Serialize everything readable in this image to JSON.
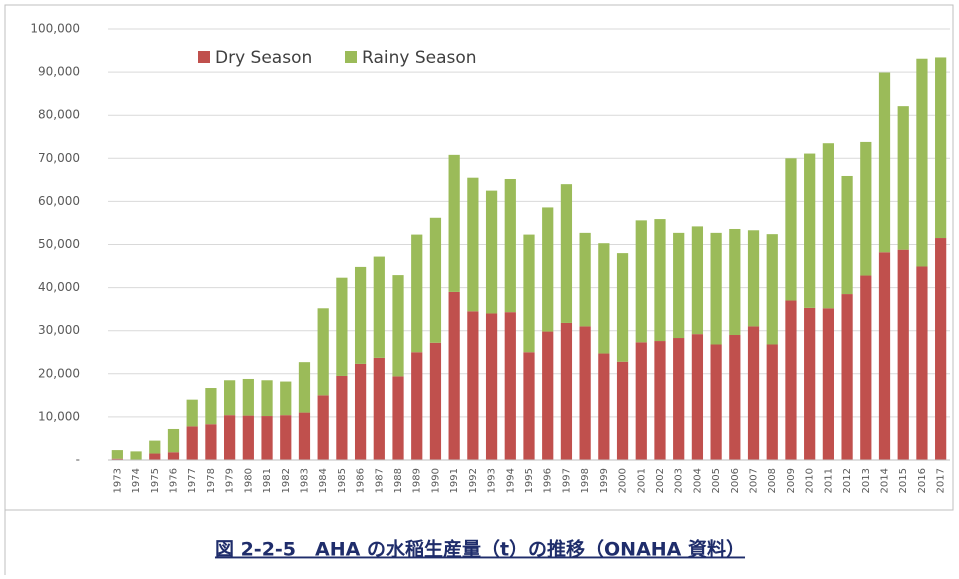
{
  "chart_data": {
    "type": "stacked_bar",
    "caption": "図 2-2-5　AHA の水稲生産量（t）の推移（ONAHA 資料）",
    "categories": [
      "1973",
      "1974",
      "1975",
      "1976",
      "1977",
      "1978",
      "1979",
      "1980",
      "1981",
      "1982",
      "1983",
      "1984",
      "1985",
      "1986",
      "1987",
      "1988",
      "1989",
      "1990",
      "1991",
      "1992",
      "1993",
      "1994",
      "1995",
      "1996",
      "1997",
      "1998",
      "1999",
      "2000",
      "2001",
      "2002",
      "2003",
      "2004",
      "2005",
      "2006",
      "2007",
      "2008",
      "2009",
      "2010",
      "2011",
      "2012",
      "2013",
      "2014",
      "2015",
      "2016",
      "2017"
    ],
    "series": [
      {
        "name": "Dry Season",
        "color": "#c0504d",
        "values": [
          300,
          100,
          1500,
          1800,
          7800,
          8300,
          10400,
          10300,
          10200,
          10400,
          11000,
          15000,
          19500,
          22300,
          23700,
          19400,
          25000,
          27200,
          39000,
          34500,
          34000,
          34300,
          25000,
          29800,
          31800,
          31000,
          24700,
          22800,
          27300,
          27600,
          28300,
          29200,
          26800,
          29000,
          31000,
          26800,
          37000,
          35300,
          35200,
          38500,
          42800,
          48200,
          48800,
          44900,
          51500
        ]
      },
      {
        "name": "Rainy Season",
        "color": "#9bbb59",
        "values": [
          2000,
          1900,
          3000,
          5400,
          6200,
          8400,
          8100,
          8500,
          8300,
          7800,
          11700,
          20200,
          22800,
          22500,
          23500,
          23500,
          27300,
          29000,
          31800,
          31000,
          28500,
          30900,
          27300,
          28800,
          32200,
          21700,
          25600,
          25200,
          28300,
          28300,
          24400,
          25000,
          25900,
          24600,
          22300,
          25600,
          33000,
          35800,
          38300,
          27400,
          31000,
          41700,
          33300,
          48200,
          41900
        ]
      }
    ],
    "ylim": [
      0,
      100000
    ],
    "yticks": [
      {
        "value": 0,
        "label": "-"
      },
      {
        "value": 10000,
        "label": "10,000"
      },
      {
        "value": 20000,
        "label": "20,000"
      },
      {
        "value": 30000,
        "label": "30,000"
      },
      {
        "value": 40000,
        "label": "40,000"
      },
      {
        "value": 50000,
        "label": "50,000"
      },
      {
        "value": 60000,
        "label": "60,000"
      },
      {
        "value": 70000,
        "label": "70,000"
      },
      {
        "value": 80000,
        "label": "80,000"
      },
      {
        "value": 90000,
        "label": "90,000"
      },
      {
        "value": 100000,
        "label": "100,000"
      }
    ],
    "grid": true
  }
}
